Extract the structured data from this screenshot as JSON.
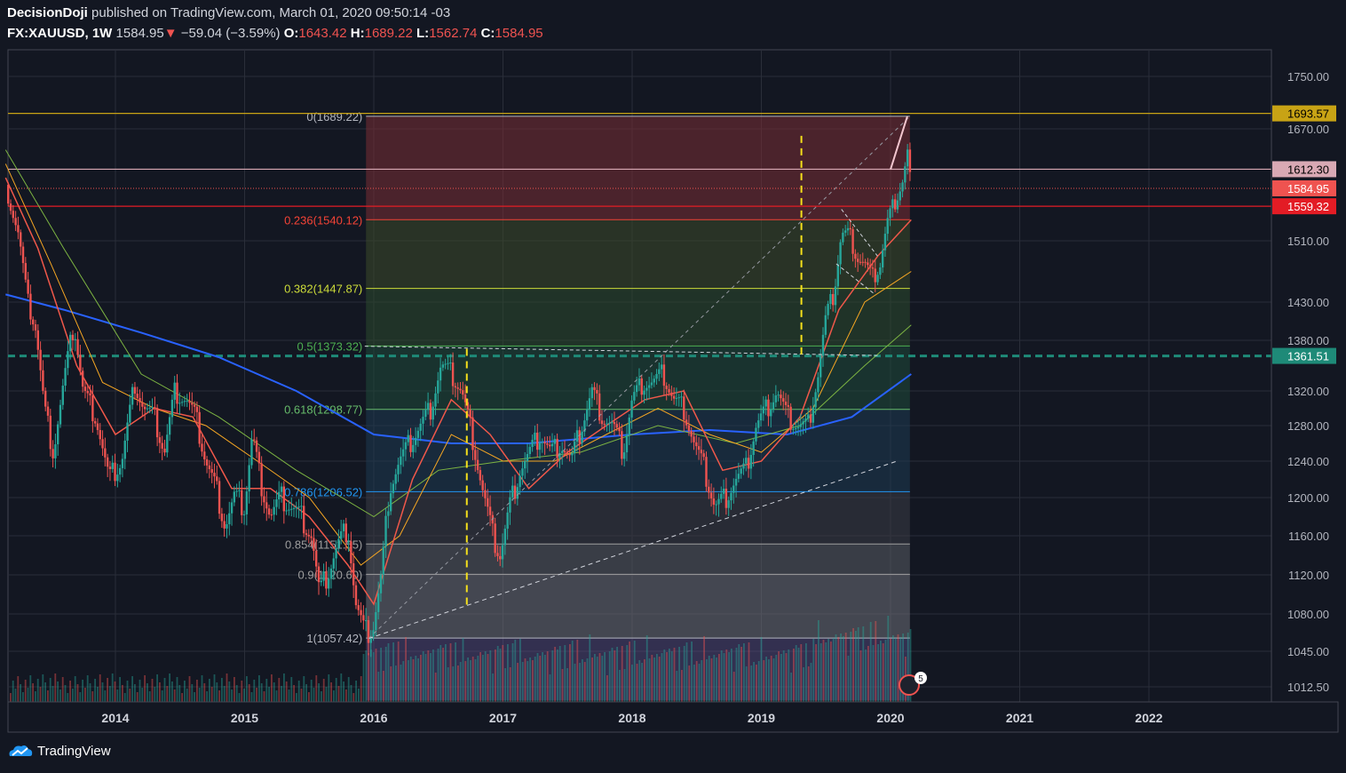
{
  "header": {
    "author": "DecisionDoji",
    "published_text": "published on TradingView.com, March 01, 2020 09:50:14 -03",
    "symbol": "FX:XAUUSD, 1W",
    "last": "1584.95",
    "change_arrow": "▼",
    "change": "−59.04 (−3.59%)",
    "open_label": "O:",
    "open": "1643.42",
    "high_label": "H:",
    "high": "1689.22",
    "low_label": "L:",
    "low": "1562.74",
    "close_label": "C:",
    "close": "1584.95"
  },
  "footer": {
    "brand": "TradingView"
  },
  "colors": {
    "background": "#131722",
    "grid": "#2a2e39",
    "up": "#26a69a",
    "down": "#ef5350",
    "ma_fast": "#f0584a",
    "ma_mid": "#f5a623",
    "ma_slow": "#7cb342",
    "ma_long": "#2962ff"
  },
  "chart_data": {
    "type": "candlestick",
    "title": "",
    "ylim": [
      1000,
      1770
    ],
    "y_ticks": [
      "1750.00",
      "1670.00",
      "1510.00",
      "1430.00",
      "1380.00",
      "1320.00",
      "1280.00",
      "1240.00",
      "1200.00",
      "1160.00",
      "1120.00",
      "1080.00",
      "1045.00",
      "1012.50"
    ],
    "x_ticks": [
      "2014",
      "2015",
      "2016",
      "2017",
      "2018",
      "2019",
      "2020",
      "2021",
      "2022"
    ],
    "price_badges": [
      {
        "value": "1693.57",
        "color": "#c8a315",
        "text_color": "#000000"
      },
      {
        "value": "1612.30",
        "color": "#d9a9b4",
        "text_color": "#000000"
      },
      {
        "value": "1584.95",
        "color": "#ef5350",
        "text_color": "#ffffff"
      },
      {
        "value": "1559.32",
        "color": "#e31c25",
        "text_color": "#ffffff"
      },
      {
        "value": "1361.51",
        "color": "#1e8a78",
        "text_color": "#ffffff"
      }
    ],
    "fib_levels": [
      {
        "label": "0(1689.22)",
        "value": 1689.22,
        "color": "#b2b5be"
      },
      {
        "label": "0.236(1540.12)",
        "value": 1540.12,
        "color": "#f44336"
      },
      {
        "label": "0.382(1447.87)",
        "value": 1447.87,
        "color": "#cddc39"
      },
      {
        "label": "0.5(1373.32)",
        "value": 1373.32,
        "color": "#4caf50"
      },
      {
        "label": "0.618(1298.77)",
        "value": 1298.77,
        "color": "#66bb6a"
      },
      {
        "label": "0.786(1206.52)",
        "value": 1206.52,
        "color": "#2196f3"
      },
      {
        "label": "0.854(1151.55)",
        "value": 1151.55,
        "color": "#9e9e9e"
      },
      {
        "label": "0.9(1120.60)",
        "value": 1120.6,
        "color": "#9e9e9e"
      },
      {
        "label": "1(1057.42)",
        "value": 1057.42,
        "color": "#b2b5be"
      }
    ],
    "horizontal_lines": [
      {
        "value": 1693.57,
        "color": "#c8a315",
        "style": "solid"
      },
      {
        "value": 1612.3,
        "color": "#d9a9b4",
        "style": "solid"
      },
      {
        "value": 1559.32,
        "color": "#e31c25",
        "style": "solid"
      },
      {
        "value": 1361.51,
        "color": "#1e8a78",
        "style": "dashed"
      }
    ],
    "events": [
      {
        "label": "5"
      }
    ],
    "close_series": [
      [
        2013.15,
        1590
      ],
      [
        2013.25,
        1520
      ],
      [
        2013.32,
        1430
      ],
      [
        2013.38,
        1400
      ],
      [
        2013.45,
        1300
      ],
      [
        2013.52,
        1250
      ],
      [
        2013.6,
        1330
      ],
      [
        2013.68,
        1400
      ],
      [
        2013.75,
        1320
      ],
      [
        2013.85,
        1290
      ],
      [
        2013.95,
        1220
      ],
      [
        2014.05,
        1240
      ],
      [
        2014.15,
        1330
      ],
      [
        2014.22,
        1300
      ],
      [
        2014.3,
        1290
      ],
      [
        2014.38,
        1250
      ],
      [
        2014.46,
        1320
      ],
      [
        2014.55,
        1310
      ],
      [
        2014.62,
        1290
      ],
      [
        2014.7,
        1240
      ],
      [
        2014.78,
        1210
      ],
      [
        2014.85,
        1170
      ],
      [
        2014.92,
        1200
      ],
      [
        2015.0,
        1190
      ],
      [
        2015.06,
        1270
      ],
      [
        2015.12,
        1220
      ],
      [
        2015.2,
        1180
      ],
      [
        2015.28,
        1200
      ],
      [
        2015.36,
        1190
      ],
      [
        2015.44,
        1180
      ],
      [
        2015.52,
        1160
      ],
      [
        2015.58,
        1100
      ],
      [
        2015.64,
        1120
      ],
      [
        2015.72,
        1150
      ],
      [
        2015.8,
        1170
      ],
      [
        2015.86,
        1090
      ],
      [
        2015.93,
        1060
      ],
      [
        2016.0,
        1070
      ],
      [
        2016.06,
        1120
      ],
      [
        2016.12,
        1210
      ],
      [
        2016.2,
        1240
      ],
      [
        2016.28,
        1260
      ],
      [
        2016.36,
        1280
      ],
      [
        2016.44,
        1300
      ],
      [
        2016.52,
        1350
      ],
      [
        2016.6,
        1340
      ],
      [
        2016.68,
        1320
      ],
      [
        2016.76,
        1270
      ],
      [
        2016.84,
        1210
      ],
      [
        2016.92,
        1160
      ],
      [
        2016.98,
        1140
      ],
      [
        2017.05,
        1190
      ],
      [
        2017.13,
        1230
      ],
      [
        2017.21,
        1250
      ],
      [
        2017.29,
        1270
      ],
      [
        2017.37,
        1250
      ],
      [
        2017.45,
        1260
      ],
      [
        2017.53,
        1240
      ],
      [
        2017.61,
        1280
      ],
      [
        2017.69,
        1320
      ],
      [
        2017.77,
        1290
      ],
      [
        2017.85,
        1280
      ],
      [
        2017.93,
        1250
      ],
      [
        2018.0,
        1310
      ],
      [
        2018.08,
        1330
      ],
      [
        2018.16,
        1330
      ],
      [
        2018.24,
        1340
      ],
      [
        2018.32,
        1310
      ],
      [
        2018.4,
        1300
      ],
      [
        2018.48,
        1260
      ],
      [
        2018.56,
        1230
      ],
      [
        2018.64,
        1190
      ],
      [
        2018.72,
        1200
      ],
      [
        2018.8,
        1220
      ],
      [
        2018.88,
        1230
      ],
      [
        2018.96,
        1280
      ],
      [
        2019.04,
        1300
      ],
      [
        2019.12,
        1320
      ],
      [
        2019.2,
        1290
      ],
      [
        2019.28,
        1280
      ],
      [
        2019.36,
        1280
      ],
      [
        2019.44,
        1340
      ],
      [
        2019.5,
        1410
      ],
      [
        2019.56,
        1440
      ],
      [
        2019.62,
        1520
      ],
      [
        2019.68,
        1520
      ],
      [
        2019.74,
        1490
      ],
      [
        2019.8,
        1480
      ],
      [
        2019.86,
        1460
      ],
      [
        2019.92,
        1480
      ],
      [
        2019.98,
        1540
      ],
      [
        2020.04,
        1570
      ],
      [
        2020.1,
        1600
      ],
      [
        2020.13,
        1640
      ],
      [
        2020.16,
        1585
      ]
    ],
    "ma_fast": [
      [
        2013.15,
        1600
      ],
      [
        2013.4,
        1500
      ],
      [
        2013.7,
        1350
      ],
      [
        2014.0,
        1270
      ],
      [
        2014.3,
        1300
      ],
      [
        2014.6,
        1290
      ],
      [
        2014.9,
        1210
      ],
      [
        2015.2,
        1210
      ],
      [
        2015.5,
        1180
      ],
      [
        2015.8,
        1130
      ],
      [
        2016.0,
        1090
      ],
      [
        2016.3,
        1220
      ],
      [
        2016.6,
        1310
      ],
      [
        2016.9,
        1270
      ],
      [
        2017.2,
        1210
      ],
      [
        2017.5,
        1250
      ],
      [
        2017.8,
        1280
      ],
      [
        2018.1,
        1310
      ],
      [
        2018.4,
        1320
      ],
      [
        2018.7,
        1230
      ],
      [
        2019.0,
        1240
      ],
      [
        2019.3,
        1290
      ],
      [
        2019.6,
        1420
      ],
      [
        2019.9,
        1490
      ],
      [
        2020.16,
        1540
      ]
    ],
    "ma_mid": [
      [
        2013.15,
        1620
      ],
      [
        2013.5,
        1480
      ],
      [
        2013.9,
        1330
      ],
      [
        2014.3,
        1300
      ],
      [
        2014.7,
        1280
      ],
      [
        2015.1,
        1240
      ],
      [
        2015.5,
        1200
      ],
      [
        2015.9,
        1130
      ],
      [
        2016.2,
        1160
      ],
      [
        2016.6,
        1270
      ],
      [
        2017.0,
        1240
      ],
      [
        2017.4,
        1240
      ],
      [
        2017.8,
        1270
      ],
      [
        2018.2,
        1300
      ],
      [
        2018.6,
        1270
      ],
      [
        2019.0,
        1250
      ],
      [
        2019.4,
        1300
      ],
      [
        2019.8,
        1430
      ],
      [
        2020.16,
        1470
      ]
    ],
    "ma_slow": [
      [
        2013.15,
        1640
      ],
      [
        2013.6,
        1500
      ],
      [
        2014.2,
        1340
      ],
      [
        2014.8,
        1290
      ],
      [
        2015.4,
        1230
      ],
      [
        2016.0,
        1180
      ],
      [
        2016.5,
        1230
      ],
      [
        2017.0,
        1240
      ],
      [
        2017.6,
        1250
      ],
      [
        2018.2,
        1280
      ],
      [
        2018.8,
        1260
      ],
      [
        2019.3,
        1280
      ],
      [
        2019.8,
        1350
      ],
      [
        2020.16,
        1400
      ]
    ],
    "ma_long": [
      [
        2013.15,
        1440
      ],
      [
        2013.6,
        1420
      ],
      [
        2014.2,
        1390
      ],
      [
        2014.8,
        1360
      ],
      [
        2015.4,
        1320
      ],
      [
        2016.0,
        1270
      ],
      [
        2016.6,
        1260
      ],
      [
        2017.2,
        1260
      ],
      [
        2018.0,
        1270
      ],
      [
        2018.6,
        1275
      ],
      [
        2019.2,
        1270
      ],
      [
        2019.7,
        1290
      ],
      [
        2020.16,
        1340
      ]
    ]
  }
}
